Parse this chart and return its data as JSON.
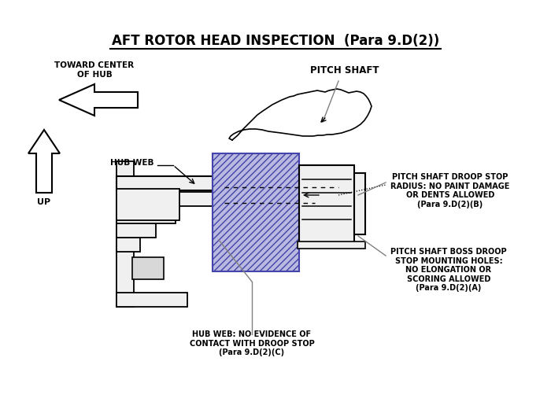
{
  "title": "AFT ROTOR HEAD INSPECTION  (Para 9.D(2))",
  "bg_color": "#ffffff",
  "fg_color": "#000000",
  "label_toward_center": "TOWARD CENTER\nOF HUB",
  "label_pitch_shaft": "PITCH SHAFT",
  "label_hub_web": "HUB WEB",
  "label_up": "UP",
  "label_droop_stop": "PITCH SHAFT DROOP STOP\nRADIUS: NO PAINT DAMAGE\nOR DENTS ALLOWED\n(Para 9.D(2)(B)",
  "label_boss": "PITCH SHAFT BOSS DROOP\nSTOP MOUNTING HOLES:\nNO ELONGATION OR\nSCORING ALLOWED\n(Para 9.D(2)(A)",
  "label_hub_web_note": "HUB WEB: NO EVIDENCE OF\nCONTACT WITH DROOP STOP\n(Para 9.D(2)(C)"
}
